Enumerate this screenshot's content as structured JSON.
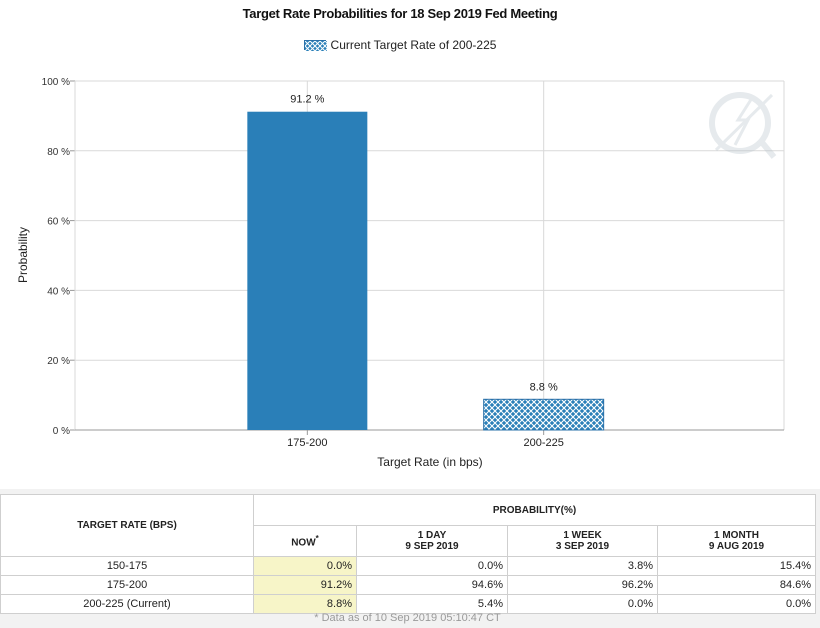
{
  "chart_data": {
    "type": "bar",
    "title": "Target Rate Probabilities for 18 Sep 2019 Fed Meeting",
    "legend": "Current Target Rate of 200-225",
    "categories": [
      "175-200",
      "200-225"
    ],
    "values": [
      91.2,
      8.8
    ],
    "data_labels": [
      "91.2 %",
      "8.8 %"
    ],
    "current_category": "200-225",
    "xlabel": "Target Rate (in bps)",
    "ylabel": "Probability",
    "ylim": [
      0,
      100
    ],
    "yticks": [
      "0 %",
      "20 %",
      "40 %",
      "60 %",
      "80 %",
      "100 %"
    ],
    "grid": true,
    "colors": {
      "bar": "#2a7fb8",
      "hatch_bg": "#2a7fb8",
      "hatch_line": "#ffffff"
    }
  },
  "table": {
    "target_header": "TARGET RATE (BPS)",
    "prob_header": "PROBABILITY(%)",
    "now_header": "NOW",
    "now_marker": "*",
    "col_1day": {
      "title": "1 DAY",
      "date": "9 SEP 2019"
    },
    "col_1week": {
      "title": "1 WEEK",
      "date": "3 SEP 2019"
    },
    "col_1month": {
      "title": "1 MONTH",
      "date": "9 AUG 2019"
    },
    "rows": [
      {
        "rate": "150-175",
        "now": "0.0%",
        "day": "0.0%",
        "week": "3.8%",
        "month": "15.4%"
      },
      {
        "rate": "175-200",
        "now": "91.2%",
        "day": "94.6%",
        "week": "96.2%",
        "month": "84.6%"
      },
      {
        "rate": "200-225 (Current)",
        "now": "8.8%",
        "day": "5.4%",
        "week": "0.0%",
        "month": "0.0%"
      }
    ],
    "footnote": "* Data as of 10 Sep 2019 05:10:47 CT"
  }
}
